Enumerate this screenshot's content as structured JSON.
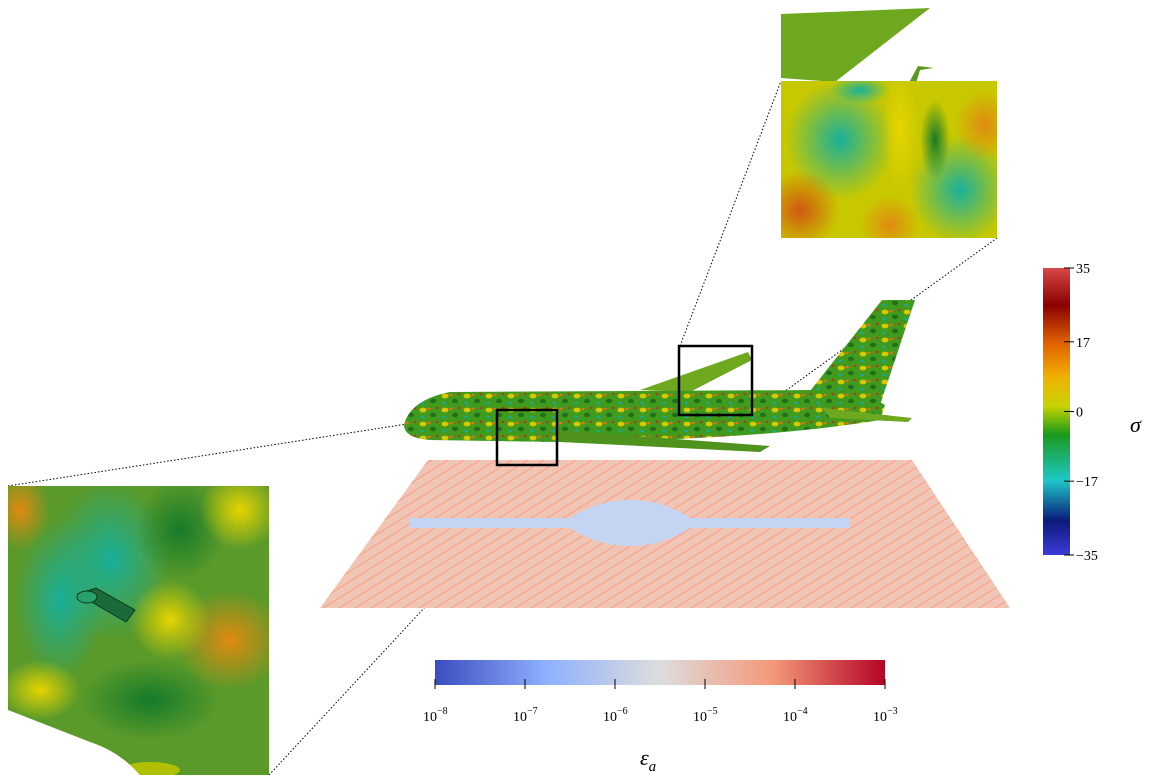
{
  "figure": {
    "panels": [
      "zoom-inset-top-right",
      "zoom-inset-bottom-left",
      "aircraft-surface",
      "ground-plane-error"
    ]
  },
  "sigma_colorbar": {
    "title": "σ",
    "ticks": [
      "35",
      "17",
      "0",
      "−17",
      "−35"
    ],
    "tick_values": [
      35,
      17,
      0,
      -17,
      -35
    ],
    "range": [
      -35,
      35
    ],
    "colors": [
      "#3b3bd8",
      "#0a1a7a",
      "#1ec8c8",
      "#1a9a1a",
      "#c8d400",
      "#f0b000",
      "#e06000",
      "#8a0000",
      "#d84848"
    ]
  },
  "error_colorbar": {
    "title": "ε",
    "title_subscript": "a",
    "ticks": [
      {
        "base": "10",
        "exp": "−8"
      },
      {
        "base": "10",
        "exp": "−7"
      },
      {
        "base": "10",
        "exp": "−6"
      },
      {
        "base": "10",
        "exp": "−5"
      },
      {
        "base": "10",
        "exp": "−4"
      },
      {
        "base": "10",
        "exp": "−3"
      }
    ],
    "log_range": [
      -8,
      -3
    ],
    "colors": [
      "#3b4cc0",
      "#8fb1fe",
      "#dddddd",
      "#f4987a",
      "#b40426"
    ]
  }
}
